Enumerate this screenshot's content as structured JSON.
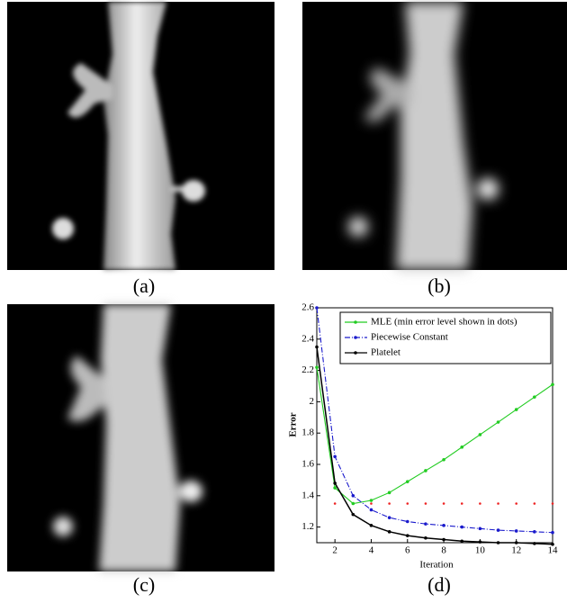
{
  "panels": [
    {
      "caption": "(a)"
    },
    {
      "caption": "(b)"
    },
    {
      "caption": "(c)"
    }
  ],
  "chart_data": {
    "type": "line",
    "caption": "(d)",
    "xlabel": "Iteration",
    "ylabel": "Error",
    "x": [
      1,
      2,
      3,
      4,
      5,
      6,
      7,
      8,
      9,
      10,
      11,
      12,
      13,
      14
    ],
    "series": [
      {
        "name": "MLE (min error level shown in dots)",
        "color": "#22cc22",
        "dash": "",
        "values": [
          2.22,
          1.45,
          1.35,
          1.37,
          1.42,
          1.49,
          1.56,
          1.63,
          1.71,
          1.79,
          1.87,
          1.95,
          2.03,
          2.11
        ]
      },
      {
        "name": "Piecewise Constant",
        "color": "#1a1acc",
        "dash": "6 2 1 2",
        "values": [
          2.6,
          1.65,
          1.4,
          1.31,
          1.26,
          1.235,
          1.22,
          1.21,
          1.2,
          1.19,
          1.18,
          1.175,
          1.17,
          1.165
        ]
      },
      {
        "name": "Platelet",
        "color": "#000000",
        "dash": "",
        "values": [
          2.35,
          1.48,
          1.28,
          1.21,
          1.17,
          1.145,
          1.13,
          1.12,
          1.11,
          1.105,
          1.1,
          1.1,
          1.095,
          1.09
        ]
      }
    ],
    "min_error_level": 1.35,
    "min_error_color": "#ee2222",
    "xlim": [
      1,
      14
    ],
    "ylim": [
      1.1,
      2.6
    ],
    "xticks": [
      2,
      4,
      6,
      8,
      10,
      12,
      14
    ],
    "yticks": [
      1.2,
      1.4,
      1.6,
      1.8,
      2,
      2.2,
      2.4,
      2.6
    ]
  }
}
